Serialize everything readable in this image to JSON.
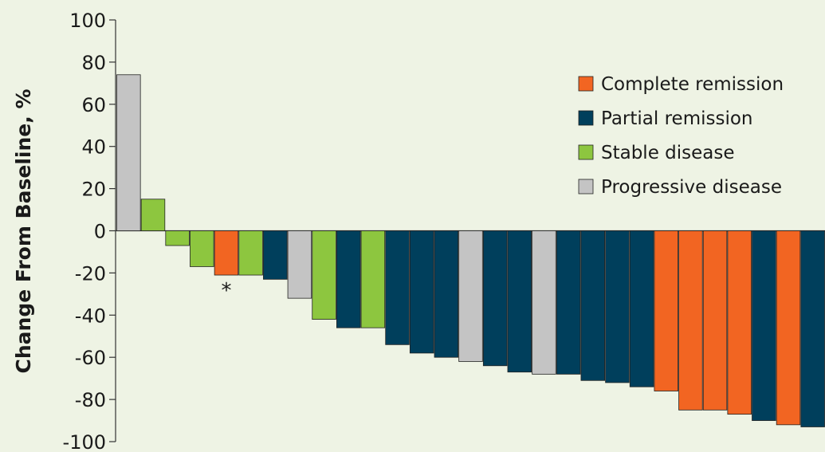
{
  "colors": {
    "complete": "#f26522",
    "partial": "#003f5c",
    "stable": "#8dc63f",
    "progressive": "#c4c4c4"
  },
  "chart_data": {
    "type": "bar",
    "ylabel": "Change From Baseline, %",
    "ylim": [
      -100,
      100
    ],
    "yticks": [
      "100",
      "80",
      "60",
      "40",
      "20",
      "0",
      "-20",
      "-40",
      "-60",
      "-80",
      "-100"
    ],
    "legend_position": "top-right",
    "legend": [
      {
        "key": "complete",
        "label": "Complete remission"
      },
      {
        "key": "partial",
        "label": "Partial remission"
      },
      {
        "key": "stable",
        "label": "Stable disease"
      },
      {
        "key": "progressive",
        "label": "Progressive disease"
      }
    ],
    "bars": [
      {
        "value": 74,
        "response": "progressive"
      },
      {
        "value": 15,
        "response": "stable"
      },
      {
        "value": -7,
        "response": "stable"
      },
      {
        "value": -17,
        "response": "stable"
      },
      {
        "value": -21,
        "response": "complete",
        "annotation": "*"
      },
      {
        "value": -21,
        "response": "stable"
      },
      {
        "value": -23,
        "response": "partial"
      },
      {
        "value": -32,
        "response": "progressive"
      },
      {
        "value": -42,
        "response": "stable"
      },
      {
        "value": -46,
        "response": "partial"
      },
      {
        "value": -46,
        "response": "stable"
      },
      {
        "value": -54,
        "response": "partial"
      },
      {
        "value": -58,
        "response": "partial"
      },
      {
        "value": -60,
        "response": "partial"
      },
      {
        "value": -62,
        "response": "progressive"
      },
      {
        "value": -64,
        "response": "partial"
      },
      {
        "value": -67,
        "response": "partial"
      },
      {
        "value": -68,
        "response": "progressive"
      },
      {
        "value": -68,
        "response": "partial"
      },
      {
        "value": -71,
        "response": "partial"
      },
      {
        "value": -72,
        "response": "partial"
      },
      {
        "value": -74,
        "response": "partial"
      },
      {
        "value": -76,
        "response": "complete"
      },
      {
        "value": -85,
        "response": "complete"
      },
      {
        "value": -85,
        "response": "complete"
      },
      {
        "value": -87,
        "response": "complete"
      },
      {
        "value": -90,
        "response": "partial"
      },
      {
        "value": -92,
        "response": "complete"
      },
      {
        "value": -93,
        "response": "partial"
      }
    ]
  }
}
